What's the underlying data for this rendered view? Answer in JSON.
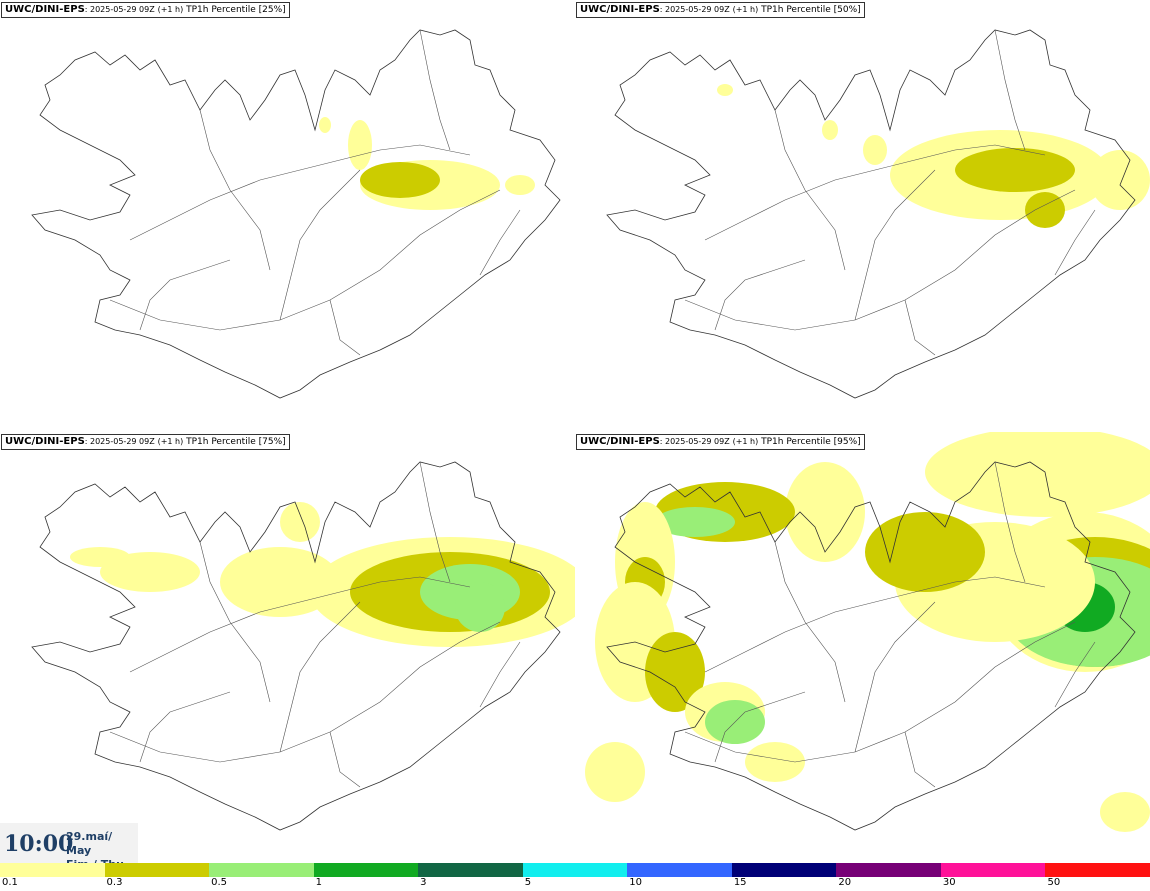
{
  "panels": [
    {
      "model": "UWC/DINI-EPS",
      "run": ": 2025-05-29 09Z",
      "lead": "(+1 h)",
      "param": "TP1h Percentile",
      "percentile": "[25%]",
      "level": 0.25
    },
    {
      "model": "UWC/DINI-EPS",
      "run": ": 2025-05-29 09Z",
      "lead": "(+1 h)",
      "param": "TP1h Percentile",
      "percentile": "[50%]",
      "level": 0.5
    },
    {
      "model": "UWC/DINI-EPS",
      "run": ": 2025-05-29 09Z",
      "lead": "(+1 h)",
      "param": "TP1h Percentile",
      "percentile": "[75%]",
      "level": 0.75
    },
    {
      "model": "UWC/DINI-EPS",
      "run": ": 2025-05-29 09Z",
      "lead": "(+1 h)",
      "param": "TP1h Percentile",
      "percentile": "[95%]",
      "level": 1.0
    }
  ],
  "valid_time": {
    "time": "10:00",
    "date_line1": "29.maí/ May",
    "date_line2": "Fim./ Thu"
  },
  "legend": {
    "labels": [
      "0.1",
      "0.3",
      "0.5",
      "1",
      "3",
      "5",
      "10",
      "15",
      "20",
      "30",
      "50"
    ],
    "colors": [
      "#ffff99",
      "#cccc00",
      "#99ee77",
      "#11aa22",
      "#116644",
      "#11eeee",
      "#3366ff",
      "#000077",
      "#770077",
      "#ff1199",
      "#ff1111"
    ]
  },
  "colors": {
    "coast": "#333333",
    "roads": "#555555"
  }
}
